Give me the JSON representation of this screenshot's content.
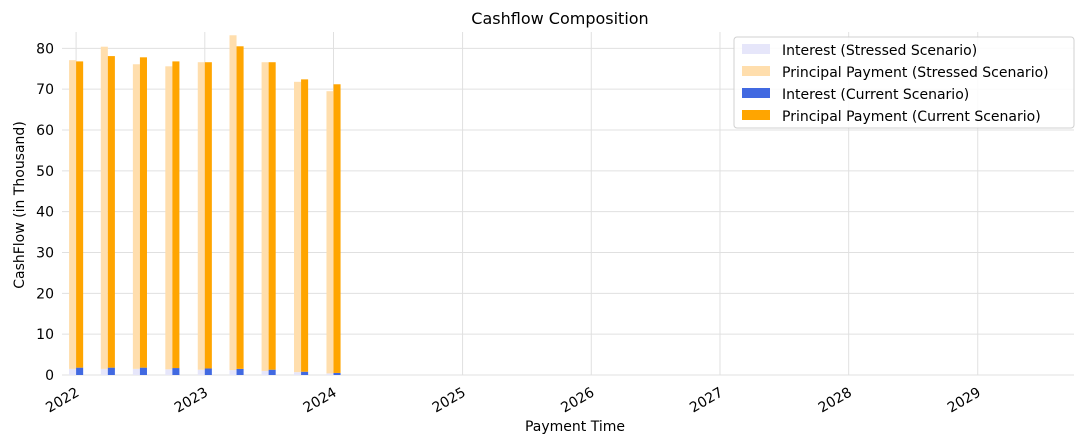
{
  "chart_data": {
    "type": "bar",
    "title": "Cashflow Composition",
    "xlabel": "Payment Time",
    "ylabel": "CashFlow (in Thousand)",
    "ylim": [
      0,
      84
    ],
    "yticks": [
      0,
      10,
      20,
      30,
      40,
      50,
      60,
      70,
      80
    ],
    "xlim": [
      "2021-11-22",
      "2029-10-01"
    ],
    "xticks": [
      "2022-01-01",
      "2023-01-01",
      "2024-01-01",
      "2025-01-01",
      "2026-01-01",
      "2027-01-01",
      "2028-01-01",
      "2029-01-01"
    ],
    "xtick_labels": [
      "2022",
      "2023",
      "2024",
      "2025",
      "2026",
      "2027",
      "2028",
      "2029"
    ],
    "grid": true,
    "legend_position": "top-right",
    "stacked": true,
    "dates": [
      "2022-01-01",
      "2022-04-01",
      "2022-07-01",
      "2022-10-01",
      "2023-01-01",
      "2023-04-01",
      "2023-07-01",
      "2023-10-01",
      "2024-01-01"
    ],
    "series": [
      {
        "name": "Interest (Stressed Scenario)",
        "color": "#e6e6fa",
        "group": "stressed",
        "values": [
          1.5,
          1.5,
          1.5,
          1.4,
          1.3,
          1.2,
          1.0,
          0.7,
          0.4
        ]
      },
      {
        "name": "Principal Payment (Stressed Scenario)",
        "color": "#ffdead",
        "group": "stressed",
        "values": [
          75.6,
          78.9,
          74.6,
          74.2,
          75.3,
          82.0,
          75.6,
          71.1,
          69.1
        ]
      },
      {
        "name": "Interest (Current Scenario)",
        "color": "#4169e1",
        "group": "current",
        "values": [
          1.8,
          1.8,
          1.8,
          1.7,
          1.6,
          1.5,
          1.3,
          0.8,
          0.5
        ]
      },
      {
        "name": "Principal Payment (Current Scenario)",
        "color": "#ffa500",
        "group": "current",
        "values": [
          75.0,
          76.3,
          76.0,
          75.1,
          75.0,
          79.0,
          75.3,
          71.6,
          70.7
        ]
      }
    ]
  }
}
